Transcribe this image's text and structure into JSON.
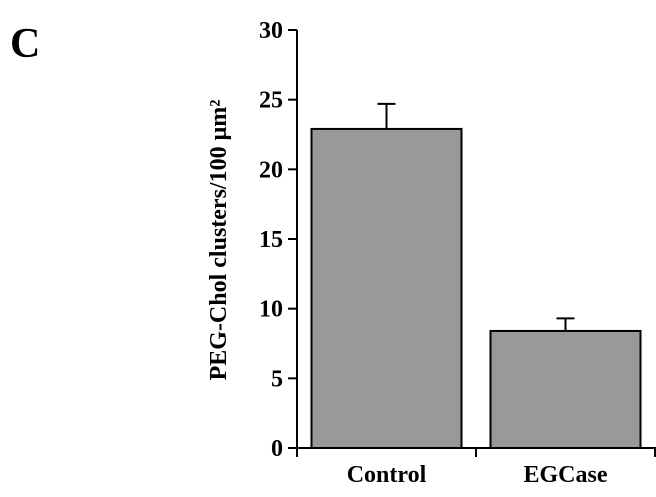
{
  "panel_label": "C",
  "chart_data": {
    "type": "bar",
    "categories": [
      "Control",
      "EGCase"
    ],
    "values": [
      22.9,
      8.4
    ],
    "errors": [
      1.8,
      0.9
    ],
    "title": "",
    "xlabel": "",
    "ylabel": "PEG-Chol clusters/100 μm²",
    "ylim": [
      0,
      30
    ],
    "yticks": [
      0,
      5,
      10,
      15,
      20,
      25,
      30
    ],
    "bar_color": "#999999",
    "grid": false,
    "legend": "none"
  }
}
